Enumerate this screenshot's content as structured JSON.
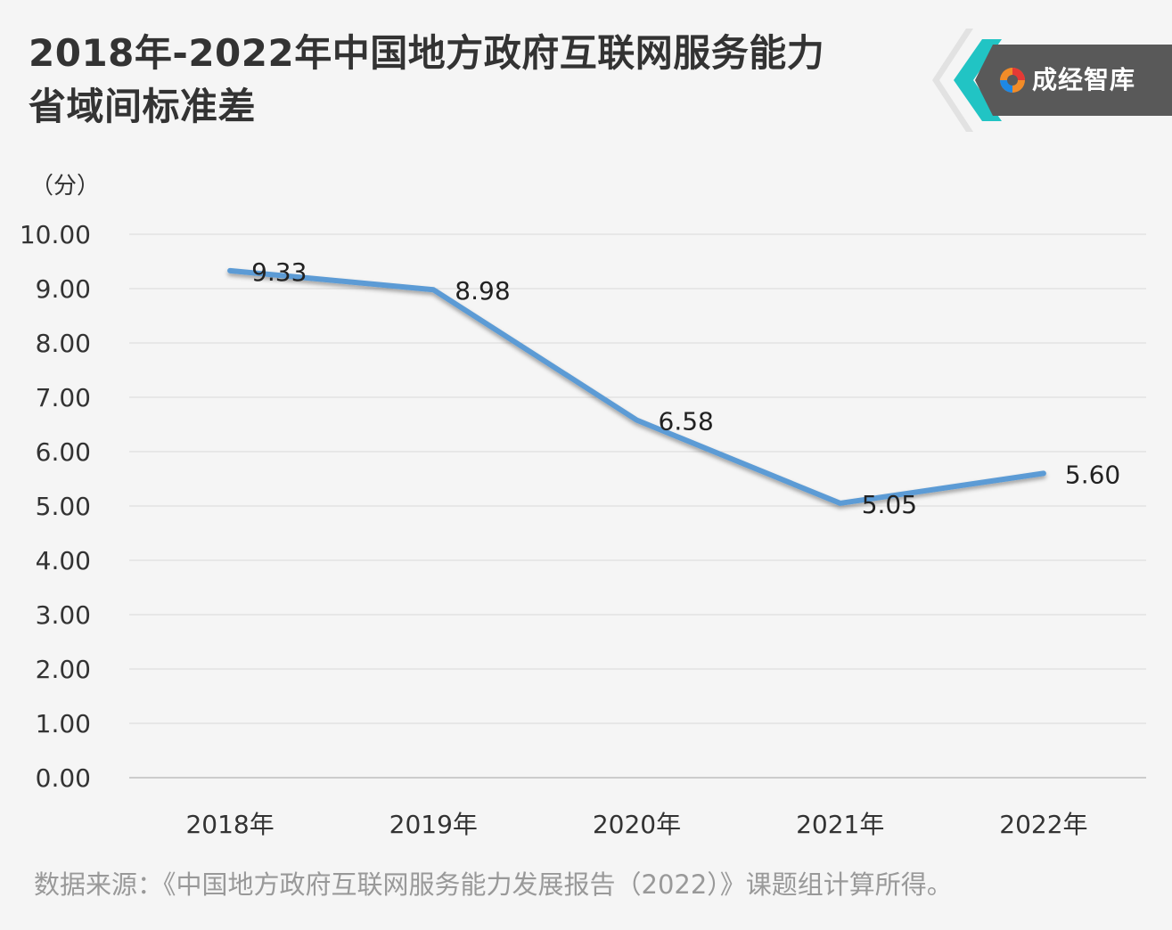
{
  "title_line1": "2018年-2022年中国地方政府互联网服务能力",
  "title_line2": "省域间标准差",
  "logo_text": "成经智库",
  "source": "数据来源：《中国地方政府互联网服务能力发展报告（2022）》课题组计算所得。",
  "colors": {
    "line": "#5b9bd5",
    "accent": "#21c4c4",
    "logo_bg": "#595959",
    "grid": "#d9d9d9"
  },
  "chart_data": {
    "type": "line",
    "title": "2018年-2022年中国地方政府互联网服务能力省域间标准差",
    "ylabel": "（分）",
    "xlabel": "",
    "categories": [
      "2018年",
      "2019年",
      "2020年",
      "2021年",
      "2022年"
    ],
    "values": [
      9.33,
      8.98,
      6.58,
      5.05,
      5.6
    ],
    "data_labels": [
      "9.33",
      "8.98",
      "6.58",
      "5.05",
      "5.60"
    ],
    "ylim": [
      0,
      10
    ],
    "yticks": [
      "0.00",
      "1.00",
      "2.00",
      "3.00",
      "4.00",
      "5.00",
      "6.00",
      "7.00",
      "8.00",
      "9.00",
      "10.00"
    ],
    "grid": true,
    "legend": "none"
  }
}
